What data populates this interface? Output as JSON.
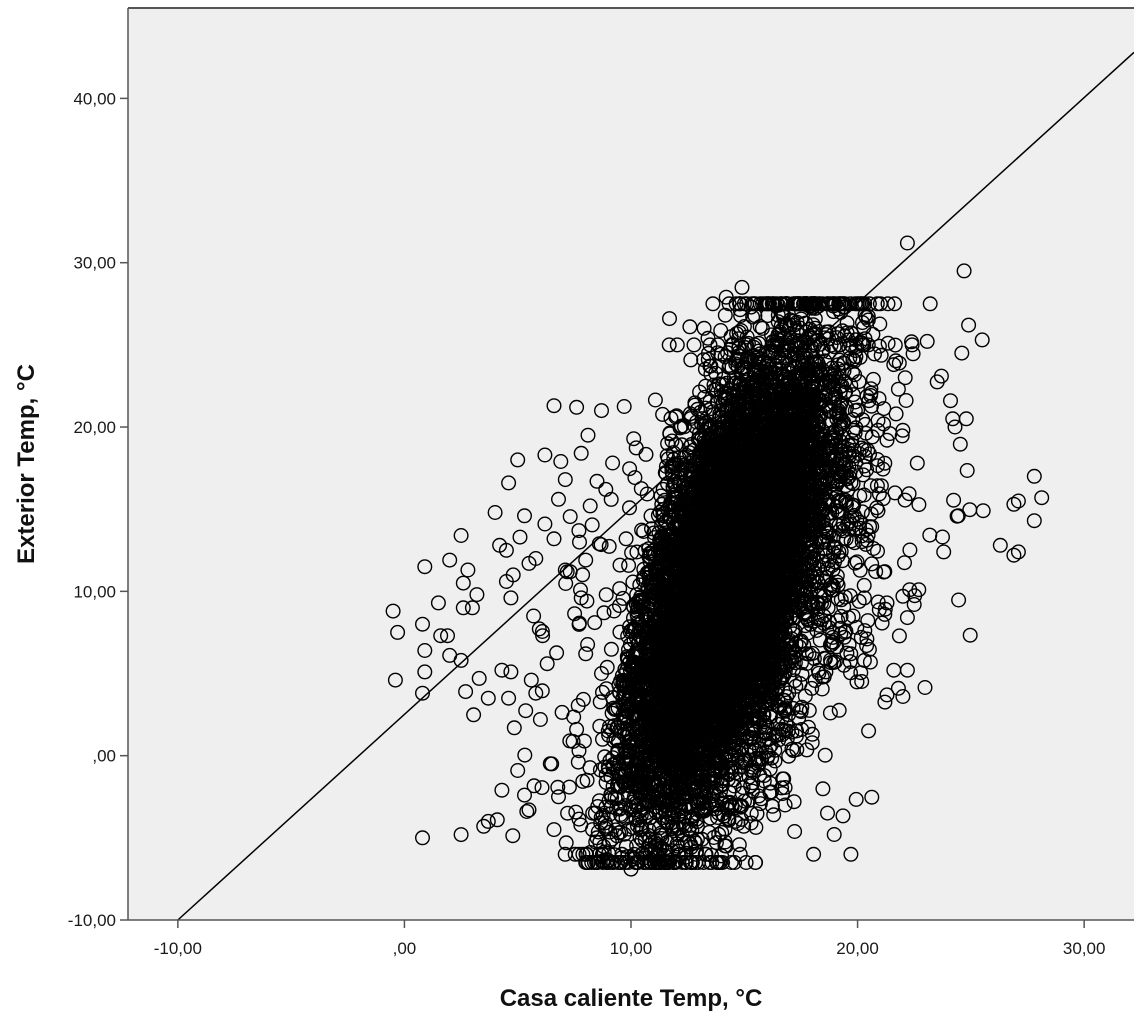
{
  "chart_data": {
    "type": "scatter",
    "title": "",
    "xlabel": "Casa caliente Temp, °C",
    "ylabel": "Exterior Temp, °C",
    "xlim": [
      -12.2,
      32.2
    ],
    "ylim": [
      -10,
      45.5
    ],
    "x_ticks": [
      -10,
      0,
      10,
      20,
      30
    ],
    "x_tick_labels": [
      "-10,00",
      ",00",
      "10,00",
      "20,00",
      "30,00"
    ],
    "y_ticks": [
      -10,
      0,
      10,
      20,
      30,
      40
    ],
    "y_tick_labels": [
      "-10,00",
      ",00",
      "10,00",
      "20,00",
      "30,00",
      "40,00"
    ],
    "grid": false,
    "legend": "none",
    "reference_line": {
      "type": "y=x",
      "from": [
        -10,
        -10
      ],
      "to": [
        32.2,
        42.8
      ]
    },
    "marker": "open-circle",
    "colors": {
      "plot_background": "#efefef",
      "marker": "#000000",
      "line": "#000000",
      "axis": "#555555"
    },
    "cloud": {
      "x_mean": 14.2,
      "y_mean": 10.5,
      "n_dense": 9000
    },
    "outliers": [
      [
        -0.5,
        8.8
      ],
      [
        -0.3,
        7.5
      ],
      [
        -0.4,
        4.6
      ],
      [
        0.9,
        11.5
      ],
      [
        0.8,
        8.0
      ],
      [
        0.9,
        6.4
      ],
      [
        0.9,
        5.1
      ],
      [
        0.8,
        3.8
      ],
      [
        0.8,
        -5.0
      ],
      [
        1.6,
        7.3
      ],
      [
        1.9,
        7.3
      ],
      [
        2.0,
        6.1
      ],
      [
        1.5,
        9.3
      ],
      [
        2.0,
        11.9
      ],
      [
        2.5,
        13.4
      ],
      [
        2.8,
        11.3
      ],
      [
        2.6,
        10.5
      ],
      [
        3.2,
        9.8
      ],
      [
        3.0,
        9.0
      ],
      [
        2.6,
        9.0
      ],
      [
        2.5,
        5.8
      ],
      [
        2.7,
        3.9
      ],
      [
        3.3,
        4.7
      ],
      [
        3.7,
        3.5
      ],
      [
        4.0,
        14.8
      ],
      [
        4.2,
        12.8
      ],
      [
        4.5,
        12.5
      ],
      [
        4.8,
        11.0
      ],
      [
        4.5,
        10.6
      ],
      [
        4.7,
        9.6
      ],
      [
        4.3,
        5.2
      ],
      [
        4.7,
        5.1
      ],
      [
        4.6,
        3.5
      ],
      [
        2.5,
        -4.8
      ],
      [
        3.5,
        -4.3
      ],
      [
        3.7,
        -4.0
      ],
      [
        4.1,
        -3.9
      ],
      [
        4.3,
        -2.1
      ],
      [
        5.0,
        -0.9
      ],
      [
        5.3,
        -2.4
      ],
      [
        5.4,
        -3.4
      ],
      [
        5.5,
        -3.3
      ],
      [
        5.0,
        18.0
      ],
      [
        4.6,
        16.6
      ],
      [
        5.3,
        14.6
      ],
      [
        5.1,
        13.3
      ],
      [
        5.5,
        11.7
      ],
      [
        5.8,
        12.0
      ],
      [
        6.6,
        21.3
      ],
      [
        7.6,
        21.2
      ],
      [
        6.2,
        18.3
      ],
      [
        6.9,
        17.9
      ],
      [
        7.1,
        16.8
      ],
      [
        6.8,
        15.6
      ],
      [
        6.2,
        14.1
      ],
      [
        6.6,
        13.2
      ],
      [
        7.1,
        11.3
      ],
      [
        5.7,
        8.5
      ],
      [
        6.1,
        7.3
      ],
      [
        6.3,
        5.6
      ],
      [
        5.6,
        4.6
      ],
      [
        5.8,
        3.8
      ],
      [
        6.0,
        2.2
      ],
      [
        6.5,
        -0.5
      ],
      [
        6.8,
        -2.5
      ],
      [
        7.2,
        -3.5
      ],
      [
        6.6,
        -4.5
      ],
      [
        8.3,
        -4.5
      ],
      [
        8.5,
        -5.0
      ],
      [
        8.9,
        -4.3
      ],
      [
        7.3,
        0.9
      ],
      [
        7.6,
        1.6
      ],
      [
        8.7,
        21.0
      ],
      [
        8.1,
        19.5
      ],
      [
        7.8,
        18.4
      ],
      [
        8.5,
        16.7
      ],
      [
        8.2,
        15.2
      ],
      [
        7.7,
        13.7
      ],
      [
        8.6,
        12.9
      ],
      [
        8.0,
        11.9
      ],
      [
        7.8,
        9.6
      ],
      [
        8.4,
        8.1
      ],
      [
        8.0,
        6.2
      ],
      [
        8.7,
        5.0
      ],
      [
        9.6,
        -6.2
      ],
      [
        10.0,
        -6.9
      ],
      [
        11.5,
        -6.1
      ],
      [
        12.8,
        -5.2
      ],
      [
        13.5,
        -3.8
      ],
      [
        11.7,
        26.6
      ],
      [
        12.6,
        26.1
      ],
      [
        13.4,
        25.4
      ],
      [
        14.2,
        27.9
      ],
      [
        14.9,
        28.5
      ],
      [
        15.3,
        27.3
      ],
      [
        15.8,
        26.0
      ],
      [
        16.5,
        26.8
      ],
      [
        17.2,
        26.2
      ],
      [
        18.1,
        25.7
      ],
      [
        14.0,
        -6.1
      ],
      [
        14.2,
        -5.5
      ],
      [
        14.6,
        -4.0
      ],
      [
        15.3,
        -4.1
      ],
      [
        16.3,
        -3.6
      ],
      [
        16.8,
        -3.0
      ],
      [
        17.2,
        -2.8
      ],
      [
        17.1,
        0.4
      ],
      [
        18.0,
        1.3
      ],
      [
        17.4,
        2.3
      ],
      [
        19.2,
        25.0
      ],
      [
        19.8,
        24.1
      ],
      [
        20.2,
        25.1
      ],
      [
        20.7,
        22.9
      ],
      [
        20.5,
        21.6
      ],
      [
        19.9,
        21.0
      ],
      [
        20.9,
        20.4
      ],
      [
        20.9,
        19.8
      ],
      [
        21.3,
        19.2
      ],
      [
        21.8,
        22.3
      ],
      [
        21.7,
        20.8
      ],
      [
        22.0,
        19.8
      ],
      [
        22.1,
        23.0
      ],
      [
        21.6,
        23.8
      ],
      [
        21.2,
        17.8
      ],
      [
        20.4,
        17.4
      ],
      [
        20.1,
        15.8
      ],
      [
        20.9,
        14.9
      ],
      [
        19.7,
        14.1
      ],
      [
        19.5,
        13.2
      ],
      [
        20.8,
        11.2
      ],
      [
        21.2,
        11.2
      ],
      [
        20.3,
        9.6
      ],
      [
        21.3,
        9.3
      ],
      [
        21.2,
        8.6
      ],
      [
        19.6,
        8.4
      ],
      [
        18.9,
        7.2
      ],
      [
        20.4,
        6.7
      ],
      [
        19.7,
        6.2
      ],
      [
        20.3,
        5.8
      ],
      [
        18.6,
        5.1
      ],
      [
        19.4,
        5.5
      ],
      [
        21.6,
        5.2
      ],
      [
        22.2,
        5.2
      ],
      [
        21.3,
        3.7
      ],
      [
        22.0,
        3.6
      ],
      [
        21.8,
        4.1
      ],
      [
        18.8,
        2.6
      ],
      [
        18.2,
        10.9
      ],
      [
        18.7,
        9.0
      ],
      [
        22.2,
        8.4
      ],
      [
        22.0,
        9.7
      ],
      [
        22.5,
        9.2
      ],
      [
        22.3,
        10.1
      ],
      [
        22.7,
        10.1
      ],
      [
        22.2,
        31.2
      ],
      [
        24.7,
        29.5
      ],
      [
        24.9,
        26.2
      ],
      [
        24.6,
        24.5
      ],
      [
        25.5,
        25.3
      ],
      [
        23.7,
        23.1
      ],
      [
        24.1,
        21.6
      ],
      [
        24.3,
        20.0
      ],
      [
        24.2,
        20.5
      ],
      [
        24.8,
        20.5
      ],
      [
        23.8,
        12.4
      ],
      [
        26.3,
        12.8
      ],
      [
        26.9,
        12.2
      ],
      [
        27.1,
        12.4
      ],
      [
        26.9,
        15.3
      ],
      [
        27.1,
        15.5
      ],
      [
        27.8,
        17.0
      ],
      [
        27.8,
        14.3
      ]
    ]
  }
}
